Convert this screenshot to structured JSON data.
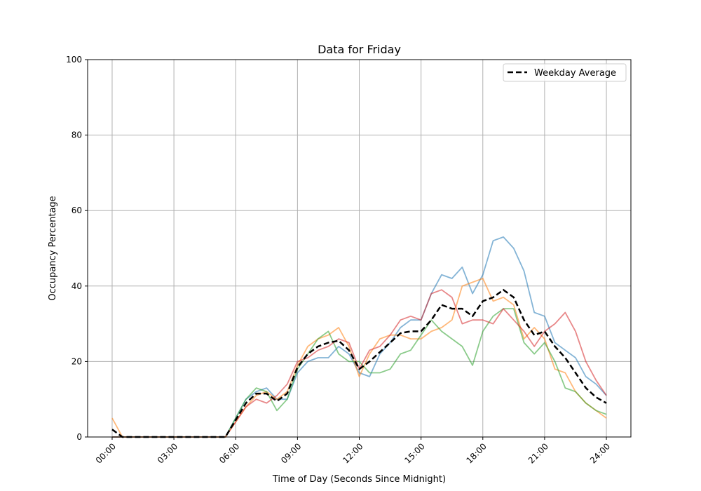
{
  "chart_data": {
    "type": "line",
    "title": "Data for Friday",
    "xlabel": "Time of Day (Seconds Since Midnight)",
    "ylabel": "Occupancy Percentage",
    "xlim_hours": [
      -1.19,
      25.19
    ],
    "ylim": [
      0,
      100
    ],
    "x_tick_labels": [
      "00:00",
      "03:00",
      "06:00",
      "09:00",
      "12:00",
      "15:00",
      "18:00",
      "21:00",
      "24:00"
    ],
    "x_tick_hours": [
      0,
      3,
      6,
      9,
      12,
      15,
      18,
      21,
      24
    ],
    "y_ticks": [
      0,
      20,
      40,
      60,
      80,
      100
    ],
    "grid": true,
    "legend_placement": "top-right",
    "x_hours": [
      0,
      0.5,
      1,
      1.5,
      2,
      2.5,
      3,
      3.5,
      4,
      4.5,
      5,
      5.5,
      6,
      6.5,
      7,
      7.5,
      8,
      8.5,
      9,
      9.5,
      10,
      10.5,
      11,
      11.5,
      12,
      12.5,
      13,
      13.5,
      14,
      14.5,
      15,
      15.5,
      16,
      16.5,
      17,
      17.5,
      18,
      18.5,
      19,
      19.5,
      20,
      20.5,
      21,
      21.5,
      22,
      22.5,
      23,
      23.5,
      24
    ],
    "series": [
      {
        "color": "#1f77b4",
        "style": "solid",
        "values": [
          0,
          0,
          0,
          0,
          0,
          0,
          0,
          0,
          0,
          0,
          0,
          0,
          5,
          10,
          12,
          13,
          10,
          10,
          17,
          20,
          21,
          21,
          24,
          22,
          17,
          16,
          22,
          25,
          29,
          31,
          31,
          38,
          43,
          42,
          45,
          38,
          43,
          52,
          53,
          50,
          44,
          33,
          32,
          25,
          23,
          21,
          16,
          14,
          11
        ]
      },
      {
        "color": "#ff7f0e",
        "style": "solid",
        "values": [
          5,
          0,
          0,
          0,
          0,
          0,
          0,
          0,
          0,
          0,
          0,
          0,
          4,
          8,
          11,
          12,
          10,
          12,
          19,
          24,
          26,
          27,
          29,
          24,
          16,
          22,
          26,
          27,
          27,
          26,
          26,
          28,
          29,
          31,
          40,
          41,
          42,
          36,
          37,
          35,
          26,
          29,
          26,
          18,
          17,
          12,
          9,
          7,
          5
        ]
      },
      {
        "color": "#2ca02c",
        "style": "solid",
        "values": [
          0,
          0,
          0,
          0,
          0,
          0,
          0,
          0,
          0,
          0,
          0,
          0,
          5,
          10,
          13,
          12,
          7,
          10,
          18,
          22,
          26,
          28,
          22,
          20,
          20,
          17,
          17,
          18,
          22,
          23,
          27,
          31,
          28,
          26,
          24,
          19,
          28,
          32,
          34,
          34,
          25,
          22,
          25,
          20,
          13,
          12,
          9,
          7,
          6
        ]
      },
      {
        "color": "#d62728",
        "style": "solid",
        "values": [
          0,
          0,
          0,
          0,
          0,
          0,
          0,
          0,
          0,
          0,
          0,
          0,
          4,
          8,
          10,
          9,
          11,
          14,
          20,
          21,
          23,
          24,
          26,
          25,
          18,
          23,
          24,
          27,
          31,
          32,
          31,
          38,
          39,
          37,
          30,
          31,
          31,
          30,
          34,
          31,
          28,
          24,
          28,
          30,
          33,
          28,
          20,
          15,
          11
        ]
      },
      {
        "name": "Weekday Average",
        "color": "#000000",
        "style": "dashed",
        "values": [
          2,
          0,
          0,
          0,
          0,
          0,
          0,
          0,
          0,
          0,
          0,
          0,
          4.5,
          9,
          11.5,
          11.5,
          9.5,
          11.5,
          18.5,
          22,
          24,
          25,
          25.5,
          23,
          18,
          20,
          22.5,
          25,
          27.5,
          28,
          28,
          31,
          35,
          34,
          34,
          32,
          36,
          37,
          39,
          37,
          31,
          27,
          28,
          24,
          21,
          17,
          13,
          10.5,
          9
        ]
      }
    ]
  }
}
